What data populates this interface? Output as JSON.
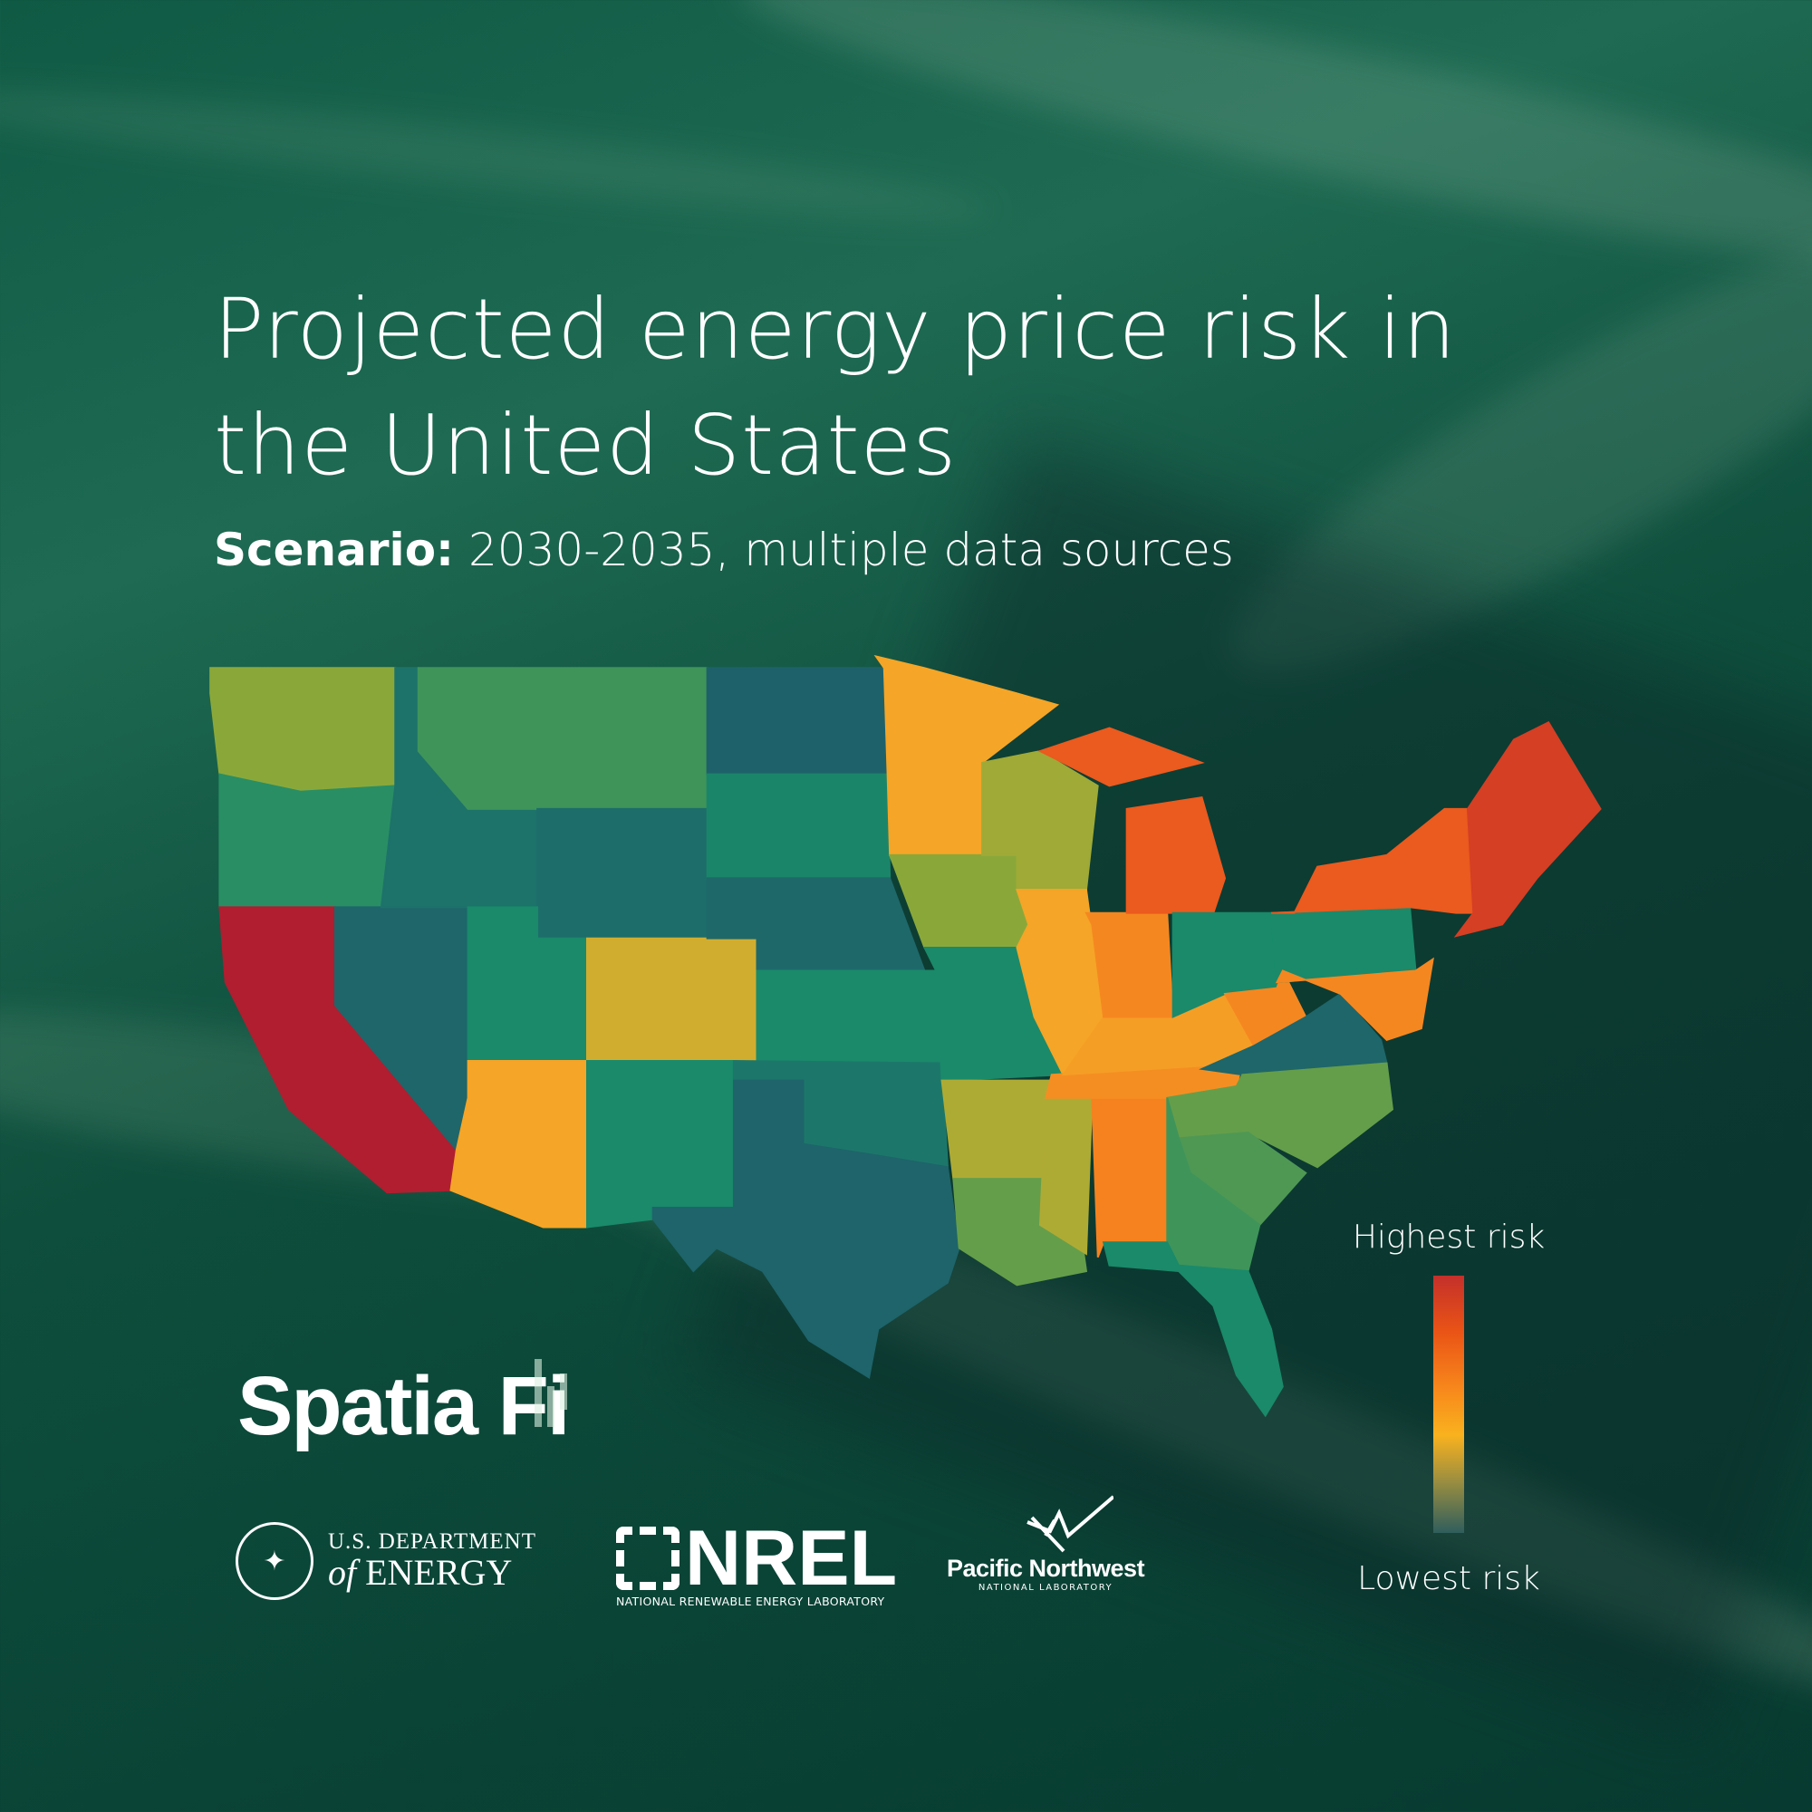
{
  "header": {
    "title": "Projected energy price risk in the United States",
    "subtitle_label": "Scenario:",
    "subtitle_value": "2030-2035, multiple data sources"
  },
  "legend": {
    "high_label": "Highest risk",
    "low_label": "Lowest risk",
    "scale_colors": [
      "#2f5e5c",
      "#9a8e40",
      "#f9b21e",
      "#f88a1c",
      "#ea5416",
      "#c4302a"
    ]
  },
  "map_data": {
    "type": "choropleth",
    "region": "United States",
    "risk_levels": {
      "WA": 0.35,
      "OR": 0.22,
      "CA": 1.0,
      "NV": 0.05,
      "ID": 0.1,
      "MT": 0.25,
      "WY": 0.08,
      "UT": 0.2,
      "CO": 0.45,
      "AZ": 0.55,
      "NM": 0.2,
      "ND": 0.03,
      "SD": 0.18,
      "NE": 0.06,
      "KS": 0.2,
      "OK": 0.12,
      "TX": 0.04,
      "MN": 0.55,
      "IA": 0.35,
      "MO": 0.2,
      "WI": 0.38,
      "IL": 0.55,
      "AR": 0.4,
      "LA": 0.3,
      "MS": 0.4,
      "AL": 0.7,
      "TN": 0.65,
      "KY": 0.58,
      "IN": 0.68,
      "MI": 0.82,
      "MI-UP": 0.82,
      "OH": 0.2,
      "WV": 0.68,
      "VA": 0.05,
      "NC": 0.3,
      "SC": 0.27,
      "GA": 0.25,
      "FL": 0.2,
      "PA": 0.2,
      "NY": 0.82,
      "NJ-MD-DE": 0.68,
      "NEW-ENGLAND": 0.9
    }
  },
  "logos": {
    "spatiafi": "Spatia Fi",
    "doe_line1": "U.S. DEPARTMENT",
    "doe_of": "of",
    "doe_line2": "ENERGY",
    "nrel": "NREL",
    "nrel_sub": "NATIONAL RENEWABLE ENERGY LABORATORY",
    "pnnl_line1": "Pacific Northwest",
    "pnnl_line2": "NATIONAL LABORATORY"
  }
}
